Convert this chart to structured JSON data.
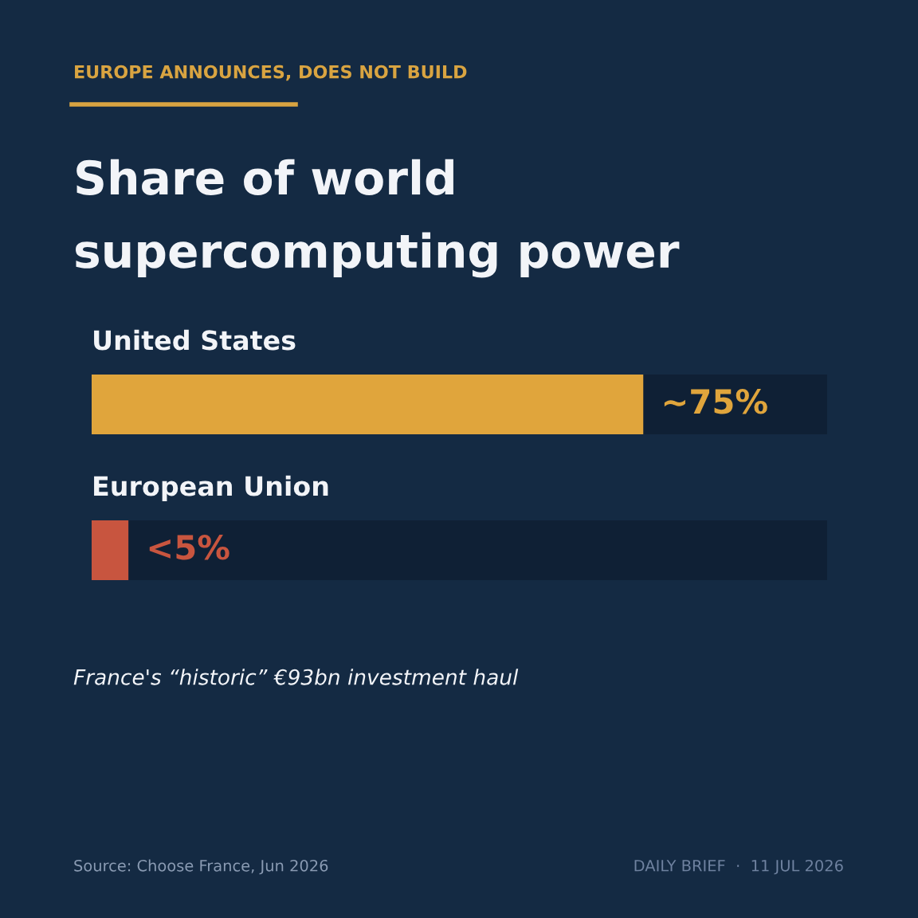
{
  "chart_data": {
    "type": "bar",
    "orientation": "horizontal",
    "subtitle": "EUROPE ANNOUNCES, DOES NOT BUILD",
    "title": "Share of world supercomputing power",
    "categories": [
      "United States",
      "European Union"
    ],
    "values": [
      75,
      5
    ],
    "colors": [
      "#e0a53c",
      "#c8553f"
    ],
    "value_labels": [
      "~75%",
      "<5%"
    ],
    "xlim": [
      0,
      100
    ],
    "annotations": [
      "France's “historic” €93bn investment haul",
      "Source: Choose France, Jun 2026",
      "DAILY BRIEF  ·  11 JUL 2026"
    ]
  }
}
